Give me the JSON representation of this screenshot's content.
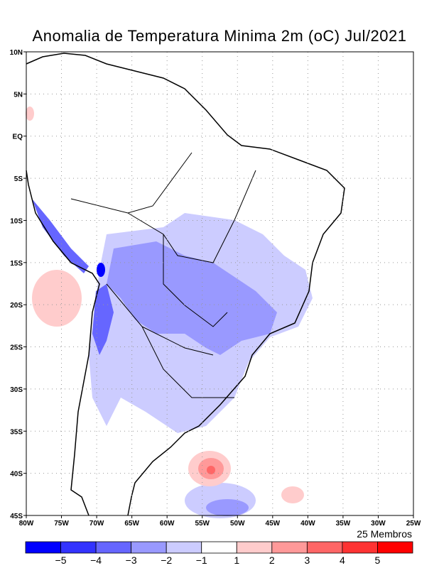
{
  "title": "Anomalia de Temperatura Minima 2m (oC) Jul/2021",
  "members_label": "25 Membros",
  "chart_data": {
    "type": "heatmap",
    "title": "Anomalia de Temperatura Minima 2m (oC) Jul/2021",
    "xlim": [
      -80,
      -25
    ],
    "ylim": [
      -45,
      10
    ],
    "x_ticks": [
      "80W",
      "75W",
      "70W",
      "65W",
      "60W",
      "55W",
      "50W",
      "45W",
      "40W",
      "35W",
      "30W",
      "25W"
    ],
    "y_ticks": [
      "10N",
      "5N",
      "EQ",
      "5S",
      "10S",
      "15S",
      "20S",
      "25S",
      "30S",
      "35S",
      "40S",
      "45S"
    ],
    "grid": true,
    "colorbar": {
      "levels": [
        "-5",
        "-4",
        "-3",
        "-2",
        "-1",
        "1",
        "2",
        "3",
        "4",
        "5"
      ],
      "colors": [
        "#0000ff",
        "#3333ff",
        "#6666ff",
        "#9999ff",
        "#ccccff",
        "#ffffff",
        "#ffcccc",
        "#ff9999",
        "#ff6666",
        "#ff3333",
        "#ff0000"
      ]
    },
    "regions": [
      {
        "name": "central-brazil",
        "anomaly_range": "-3 to -2"
      },
      {
        "name": "southern-south-america",
        "anomaly_range": "-2 to -1"
      },
      {
        "name": "bolivian-andes",
        "anomaly_range": "below -5"
      },
      {
        "name": "south-atlantic-40S-53W",
        "anomaly_range": "3 to 4"
      }
    ]
  }
}
